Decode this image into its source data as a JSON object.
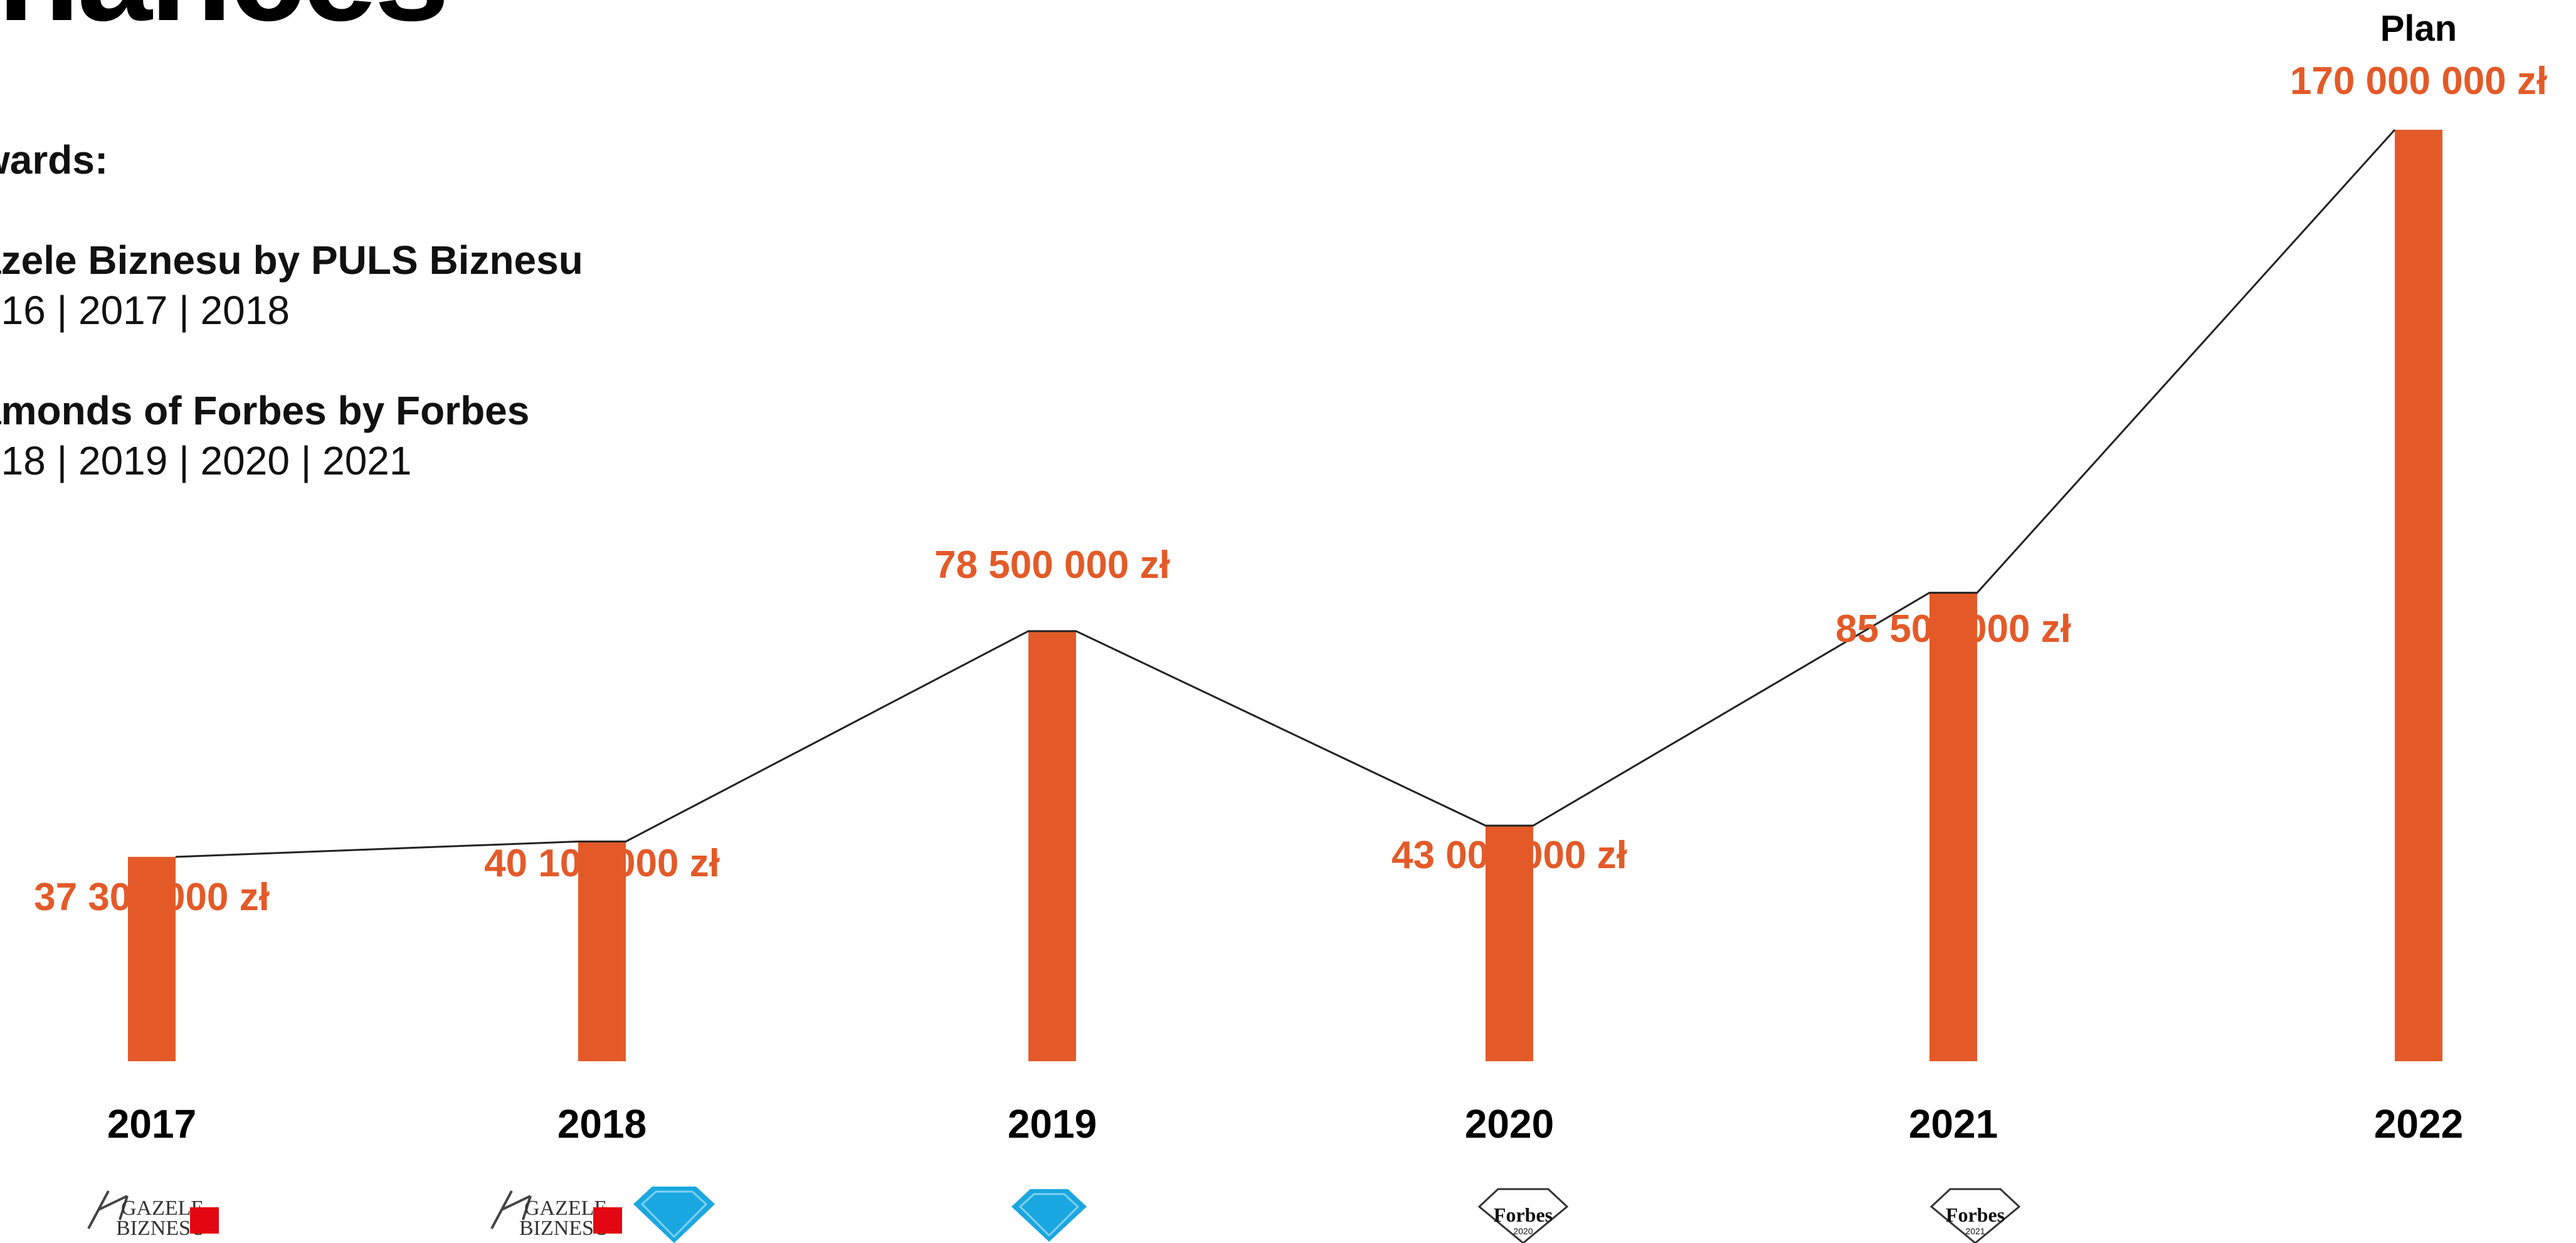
{
  "page": {
    "title": "inances"
  },
  "awards": {
    "heading": "wards:",
    "items": [
      {
        "name": "azele Biznesu by PULS Biznesu",
        "years": "016 | 2017 | 2018"
      },
      {
        "name": "amonds of Forbes by Forbes",
        "years": "018 | 2019 | 2020 | 2021"
      }
    ]
  },
  "logos": {
    "gazele_text_1": "GAZELE",
    "gazele_text_2": "BIZNESU",
    "forbes_text": "Forbes",
    "forbes_2020": "2020",
    "forbes_2021": "2021"
  },
  "colors": {
    "bar": "#e35a28",
    "value_text": "#e35a28",
    "line": "#222222",
    "year_text": "#000000"
  },
  "chart_data": {
    "type": "bar",
    "title": "",
    "xlabel": "",
    "ylabel": "",
    "categories": [
      "2017",
      "2018",
      "2019",
      "2020",
      "2021",
      "2022"
    ],
    "values": [
      37300000,
      40100000,
      78500000,
      43000000,
      85500000,
      170000000
    ],
    "value_labels": [
      "37 300 000 zł",
      "40 100 000 zł",
      "78 500 000 zł",
      "43 000 000 zł",
      "85 500 000 zł",
      "170 000 000 zł"
    ],
    "annotations": [
      {
        "category": "2022",
        "text": "Plan"
      }
    ],
    "connecting_line": true,
    "ylim": [
      0,
      170000000
    ],
    "grid": false,
    "legend": "none"
  }
}
